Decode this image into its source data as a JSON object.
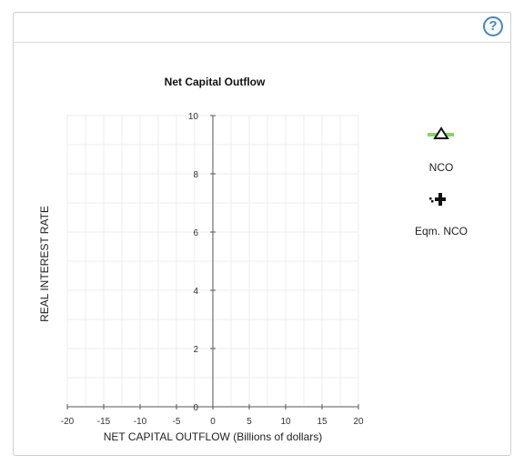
{
  "header": {
    "help_icon_glyph": "?"
  },
  "chart_data": {
    "type": "line",
    "title": "Net Capital Outflow",
    "xlabel": "NET CAPITAL OUTFLOW (Billions of dollars)",
    "ylabel": "REAL INTEREST RATE",
    "xlim": [
      -20,
      20
    ],
    "ylim": [
      0,
      10
    ],
    "x_ticks": [
      -20,
      -15,
      -10,
      -5,
      0,
      5,
      10,
      15,
      20
    ],
    "y_ticks": [
      0,
      2,
      4,
      6,
      8,
      10
    ],
    "grid": true,
    "series": []
  },
  "legend": {
    "items": [
      {
        "label": "NCO",
        "icon": "triangle-line-icon",
        "color": "#7ed957"
      },
      {
        "label": "Eqm. NCO",
        "icon": "cross-dotted-icon",
        "color": "#000000"
      }
    ]
  }
}
